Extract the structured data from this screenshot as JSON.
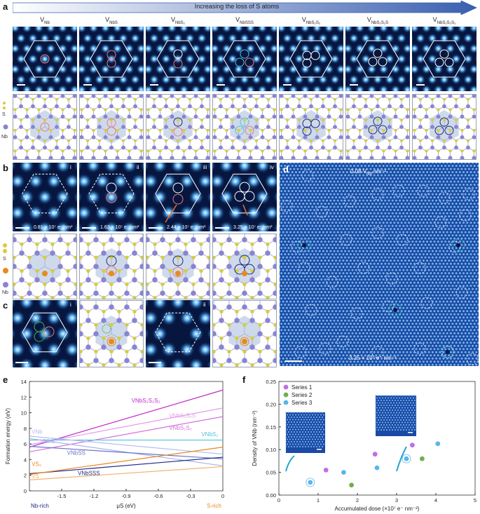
{
  "panel_a": {
    "label": "a",
    "arrow_text": "Increasing the loss of S atoms",
    "columns": [
      {
        "base": "V",
        "sub": "Nb"
      },
      {
        "base": "V",
        "sub": "NbS"
      },
      {
        "base": "V",
        "sub": "NbS₂"
      },
      {
        "base": "V",
        "sub": "NbSSS"
      },
      {
        "base": "V",
        "sub": "NbS₂S₂"
      },
      {
        "base": "V",
        "sub": "NbS₂S₂S"
      },
      {
        "base": "V",
        "sub": "NbS₂S₂S₂"
      }
    ],
    "legend": {
      "s": "S",
      "nb": "Nb"
    }
  },
  "panel_b": {
    "label": "b",
    "frames": [
      {
        "roman": "i",
        "dose": "0.81 × 10⁷ e⁻/nm²"
      },
      {
        "roman": "ii",
        "dose": "1.63 × 10⁷ e⁻/nm²"
      },
      {
        "roman": "iii",
        "dose": "2.44 × 10⁷ e⁻/nm²"
      },
      {
        "roman": "iv",
        "dose": "3.25 × 10⁷ e⁻/nm²"
      }
    ],
    "legend": {
      "s": "S",
      "nb": "Nb"
    }
  },
  "panel_c": {
    "label": "c",
    "frames": [
      {
        "roman": "i"
      },
      {
        "roman": "ii"
      }
    ]
  },
  "panel_d": {
    "label": "d",
    "top_text": "0.08 V",
    "top_sub": "Nb",
    "top_unit": " nm⁻²",
    "bottom_text": "3.25 × 10⁷ e⁻ nm⁻²"
  },
  "chart_data": [
    {
      "type": "line",
      "panel": "e",
      "xlabel": "μS (eV)",
      "ylabel": "Formation energy (eV)",
      "xlim": [
        -1.8,
        0
      ],
      "ylim": [
        0,
        14
      ],
      "xticks": [
        "-1.5",
        "-1.2",
        "-0.9",
        "-0.6",
        "-0.3",
        "0"
      ],
      "yticks": [
        "0",
        "2",
        "4",
        "6",
        "8",
        "10",
        "12",
        "14"
      ],
      "left_annotation": "Nb-rich",
      "right_annotation": "S-rich",
      "series": [
        {
          "name": "VNbS2S2S2",
          "color": "#c02ac8",
          "x": [
            -1.8,
            0
          ],
          "y": [
            5.6,
            12.9
          ]
        },
        {
          "name": "VNbS2S2S",
          "color": "#e59be8",
          "x": [
            -1.8,
            0
          ],
          "y": [
            5.9,
            10.6
          ]
        },
        {
          "name": "VNbS2S2",
          "color": "#d272db",
          "x": [
            -1.8,
            0
          ],
          "y": [
            5.0,
            9.5
          ]
        },
        {
          "name": "VNbS2",
          "color": "#4fc3d9",
          "x": [
            -1.8,
            0
          ],
          "y": [
            6.5,
            6.5
          ]
        },
        {
          "name": "VNbS",
          "color": "#aab2e6",
          "x": [
            -1.8,
            0
          ],
          "y": [
            6.7,
            3.2
          ]
        },
        {
          "name": "VNb",
          "color": "#b7bdf0",
          "x": [
            -1.8,
            0
          ],
          "y": [
            7.0,
            4.7
          ]
        },
        {
          "name": "VNbSS",
          "color": "#6a73c8",
          "x": [
            -1.8,
            0
          ],
          "y": [
            5.7,
            4.1
          ]
        },
        {
          "name": "VNbSSS",
          "color": "#1f2a8c",
          "x": [
            -1.8,
            0
          ],
          "y": [
            2.2,
            4.3
          ]
        },
        {
          "name": "VS2",
          "color": "#e88a1f",
          "x": [
            -1.8,
            0
          ],
          "y": [
            2.1,
            5.6
          ]
        },
        {
          "name": "VS",
          "color": "#f2b36e",
          "x": [
            -1.8,
            0
          ],
          "y": [
            1.4,
            3.1
          ]
        }
      ],
      "line_labels": [
        {
          "text": "VNbS₂S₂S₂",
          "color": "#c02ac8",
          "x": -0.85,
          "y": 11.3
        },
        {
          "text": "VNbS₂S₂S",
          "color": "#e59be8",
          "x": -0.5,
          "y": 9.4
        },
        {
          "text": "VNbS₂S₂",
          "color": "#d272db",
          "x": -0.5,
          "y": 7.8
        },
        {
          "text": "VNbS₂",
          "color": "#4fc3d9",
          "x": -0.2,
          "y": 7.0
        },
        {
          "text": "VNb",
          "color": "#b7bdf0",
          "x": -1.78,
          "y": 7.3
        },
        {
          "text": "VNbS",
          "color": "#aab2e6",
          "x": -1.7,
          "y": 6.1
        },
        {
          "text": "VNbSS",
          "color": "#6a73c8",
          "x": -1.45,
          "y": 4.6
        },
        {
          "text": "VNbSSS",
          "color": "#1f2a8c",
          "x": -1.35,
          "y": 2.0
        },
        {
          "text": "VS₂",
          "color": "#e88a1f",
          "x": -1.78,
          "y": 3.2
        },
        {
          "text": "VS",
          "color": "#f2b36e",
          "x": -1.78,
          "y": 1.6
        }
      ]
    },
    {
      "type": "scatter",
      "panel": "f",
      "xlabel": "Accumulated dose (×10⁷ e⁻ nm⁻²)",
      "ylabel": "Density of VNb (nm⁻²)",
      "xlim": [
        0,
        5
      ],
      "ylim": [
        0,
        0.25
      ],
      "xticks": [
        "0",
        "1",
        "2",
        "3",
        "4",
        "5"
      ],
      "yticks": [
        "0.00",
        "0.05",
        "0.10",
        "0.15",
        "0.20",
        "0.25"
      ],
      "legend_position": "top-left",
      "series": [
        {
          "name": "Series 1",
          "color": "#c06ee6",
          "x": [
            1.2,
            2.45,
            3.4
          ],
          "y": [
            0.055,
            0.09,
            0.11
          ]
        },
        {
          "name": "Series 2",
          "color": "#6fb04a",
          "x": [
            1.85,
            3.65
          ],
          "y": [
            0.022,
            0.08
          ]
        },
        {
          "name": "Series 3",
          "color": "#5ab6ea",
          "x": [
            0.8,
            1.65,
            2.5,
            3.25,
            4.05
          ],
          "y": [
            0.028,
            0.05,
            0.06,
            0.08,
            0.113
          ]
        }
      ]
    }
  ],
  "panel_e_label": "e",
  "panel_f_label": "f"
}
